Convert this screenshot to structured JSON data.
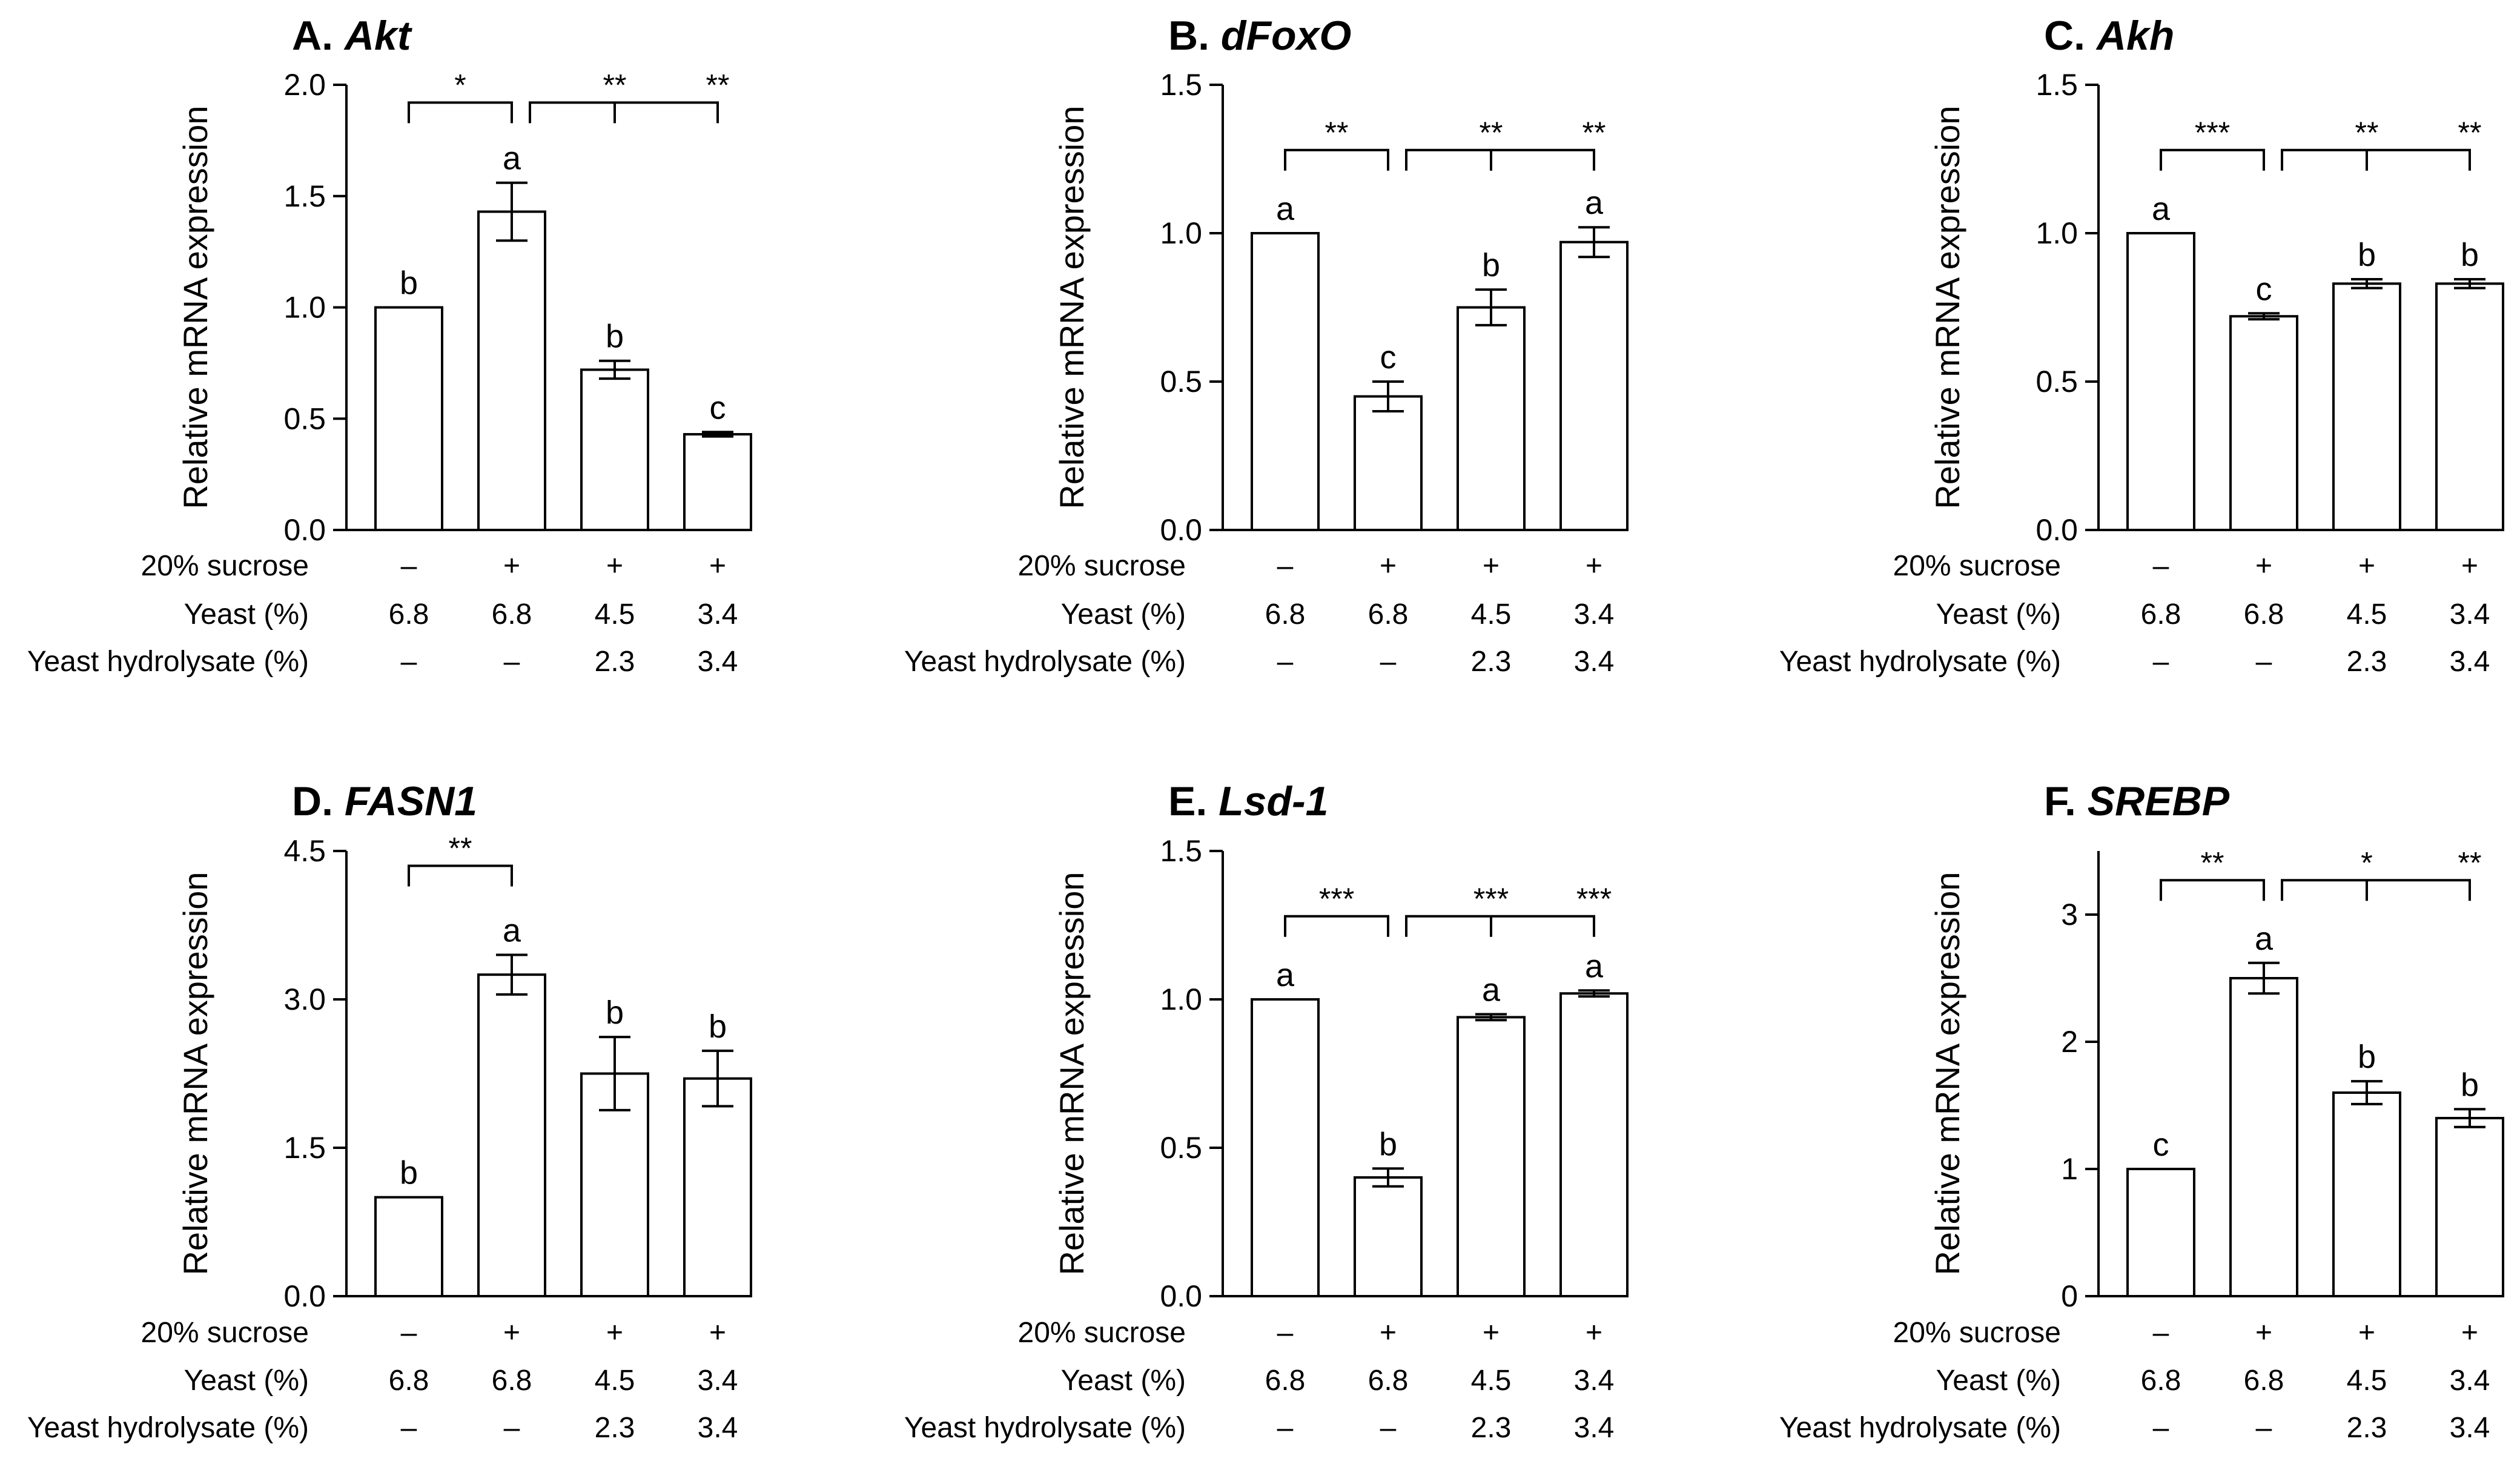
{
  "figure": {
    "row_labels": [
      "20% sucrose",
      "Yeast (%)",
      "Yeast hydrolysate (%)"
    ],
    "conditions": [
      [
        "–",
        "6.8",
        "–"
      ],
      [
        "+",
        "6.8",
        "–"
      ],
      [
        "+",
        "4.5",
        "2.3"
      ],
      [
        "+",
        "3.4",
        "3.4"
      ]
    ],
    "axis_style": {
      "bar_fill": "#ffffff",
      "stroke": "#000000"
    }
  },
  "chart_data": [
    {
      "type": "bar",
      "panel": "A.",
      "gene": "Akt",
      "ylabel": "Relative mRNA expression",
      "ylim": [
        0,
        2.0
      ],
      "yticks": [
        "0.0",
        "0.5",
        "1.0",
        "1.5",
        "2.0"
      ],
      "values": [
        1.0,
        1.43,
        0.72,
        0.43
      ],
      "errors": [
        0,
        0.13,
        0.04,
        0.01
      ],
      "letters": [
        "b",
        "a",
        "b",
        "c"
      ],
      "comparisons": [
        {
          "from": 0,
          "to": 1,
          "label": "*",
          "level": 1.92
        },
        {
          "from": 1,
          "to": [
            2,
            3
          ],
          "labels": [
            "**",
            "**"
          ],
          "level": 1.92
        }
      ]
    },
    {
      "type": "bar",
      "panel": "B.",
      "gene": "dFoxO",
      "ylabel": "Relative mRNA expression",
      "ylim": [
        0,
        1.5
      ],
      "yticks": [
        "0.0",
        "0.5",
        "1.0",
        "1.5"
      ],
      "values": [
        1.0,
        0.45,
        0.75,
        0.97
      ],
      "errors": [
        0,
        0.05,
        0.06,
        0.05
      ],
      "letters": [
        "a",
        "c",
        "b",
        "a"
      ],
      "comparisons": [
        {
          "from": 0,
          "to": 1,
          "label": "**",
          "level": 1.28
        },
        {
          "from": 1,
          "to": [
            2,
            3
          ],
          "labels": [
            "**",
            "**"
          ],
          "level": 1.28
        }
      ]
    },
    {
      "type": "bar",
      "panel": "C.",
      "gene": "Akh",
      "ylabel": "Relative mRNA expression",
      "ylim": [
        0,
        1.5
      ],
      "yticks": [
        "0.0",
        "0.5",
        "1.0",
        "1.5"
      ],
      "values": [
        1.0,
        0.72,
        0.83,
        0.83
      ],
      "errors": [
        0,
        0.01,
        0.015,
        0.015
      ],
      "letters": [
        "a",
        "c",
        "b",
        "b"
      ],
      "comparisons": [
        {
          "from": 0,
          "to": 1,
          "label": "***",
          "level": 1.28
        },
        {
          "from": 1,
          "to": [
            2,
            3
          ],
          "labels": [
            "**",
            "**"
          ],
          "level": 1.28
        }
      ]
    },
    {
      "type": "bar",
      "panel": "D.",
      "gene": "FASN1",
      "ylabel": "Relative mRNA expression",
      "ylim": [
        0,
        4.5
      ],
      "yticks": [
        "0.0",
        "1.5",
        "3.0",
        "4.5"
      ],
      "values": [
        1.0,
        3.25,
        2.25,
        2.2
      ],
      "errors": [
        0,
        0.2,
        0.37,
        0.28
      ],
      "letters": [
        "b",
        "a",
        "b",
        "b"
      ],
      "comparisons": [
        {
          "from": 0,
          "to": 1,
          "label": "**",
          "level": 4.35
        }
      ]
    },
    {
      "type": "bar",
      "panel": "E.",
      "gene": "Lsd-1",
      "ylabel": "Relative mRNA expression",
      "ylim": [
        0,
        1.5
      ],
      "yticks": [
        "0.0",
        "0.5",
        "1.0",
        "1.5"
      ],
      "values": [
        1.0,
        0.4,
        0.94,
        1.02
      ],
      "errors": [
        0,
        0.03,
        0.01,
        0.01
      ],
      "letters": [
        "a",
        "b",
        "a",
        "a"
      ],
      "comparisons": [
        {
          "from": 0,
          "to": 1,
          "label": "***",
          "level": 1.28
        },
        {
          "from": 1,
          "to": [
            2,
            3
          ],
          "labels": [
            "***",
            "***"
          ],
          "level": 1.28
        }
      ]
    },
    {
      "type": "bar",
      "panel": "F.",
      "gene": "SREBP",
      "ylabel": "Relative mRNA expression",
      "ylim": [
        0,
        3.5
      ],
      "yticks": [
        "0",
        "1",
        "2",
        "3"
      ],
      "values": [
        1.0,
        2.5,
        1.6,
        1.4
      ],
      "errors": [
        0,
        0.12,
        0.09,
        0.07
      ],
      "letters": [
        "c",
        "a",
        "b",
        "b"
      ],
      "comparisons": [
        {
          "from": 0,
          "to": 1,
          "label": "**",
          "level": 3.27
        },
        {
          "from": 1,
          "to": [
            2,
            3
          ],
          "labels": [
            "*",
            "**"
          ],
          "level": 3.27
        }
      ]
    }
  ]
}
